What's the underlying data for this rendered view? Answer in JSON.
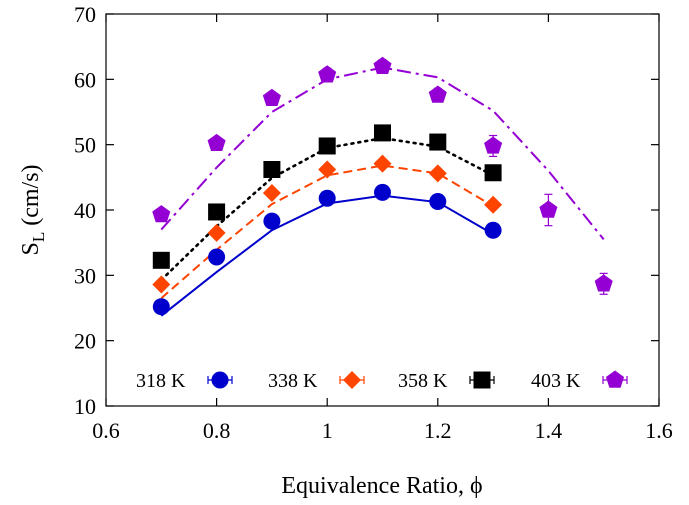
{
  "chart_data": {
    "type": "scatter",
    "xlabel": "Equivalence Ratio, ϕ",
    "ylabel_main": "S",
    "ylabel_sub": "L",
    "ylabel_rest": " (cm/s)",
    "xlim": [
      0.6,
      1.6
    ],
    "ylim": [
      10,
      70
    ],
    "xticks": [
      0.6,
      0.8,
      1,
      1.2,
      1.4,
      1.6
    ],
    "xtick_labels": [
      "0.6",
      "0.8",
      "1",
      "1.2",
      "1.4",
      "1.6"
    ],
    "yticks": [
      10,
      20,
      30,
      40,
      50,
      60,
      70
    ],
    "ytick_labels": [
      "10",
      "20",
      "30",
      "40",
      "50",
      "60",
      "70"
    ],
    "grid": false,
    "legend_position": "bottom, single row",
    "series": [
      {
        "name": "318 K",
        "color": "#0000cc",
        "marker": "circle",
        "line_style": "solid",
        "x": [
          0.7,
          0.8,
          0.9,
          1.0,
          1.1,
          1.2,
          1.3
        ],
        "y": [
          25.2,
          32.8,
          38.3,
          41.8,
          42.7,
          41.3,
          36.9
        ],
        "yerr": [
          0.6,
          0.6,
          0.6,
          0.6,
          0.6,
          0.6,
          0.6
        ],
        "fit_x": [
          0.7,
          0.8,
          0.9,
          1.0,
          1.1,
          1.2,
          1.3
        ],
        "fit_y": [
          23.8,
          30.5,
          36.9,
          41.0,
          42.2,
          41.2,
          36.3
        ]
      },
      {
        "name": "338 K",
        "color": "#ff4400",
        "marker": "diamond",
        "line_style": "dashed",
        "x": [
          0.7,
          0.8,
          0.9,
          1.0,
          1.1,
          1.2,
          1.3
        ],
        "y": [
          28.6,
          36.5,
          42.6,
          46.2,
          47.1,
          45.6,
          40.8
        ],
        "yerr": [
          0.6,
          0.6,
          0.6,
          0.6,
          0.6,
          0.6,
          0.6
        ],
        "fit_x": [
          0.7,
          0.8,
          0.9,
          1.0,
          1.1,
          1.2,
          1.3
        ],
        "fit_y": [
          26.5,
          33.9,
          40.9,
          45.3,
          46.8,
          45.6,
          40.6
        ]
      },
      {
        "name": "358 K",
        "color": "#000000",
        "marker": "square",
        "line_style": "dotted",
        "x": [
          0.7,
          0.8,
          0.9,
          1.0,
          1.1,
          1.2,
          1.3
        ],
        "y": [
          32.3,
          39.7,
          46.2,
          49.8,
          51.8,
          50.4,
          45.7
        ],
        "yerr": [
          0.6,
          0.6,
          0.6,
          0.6,
          0.6,
          0.6,
          0.6
        ],
        "fit_x": [
          0.7,
          0.8,
          0.9,
          1.0,
          1.1,
          1.2,
          1.3
        ],
        "fit_y": [
          29.3,
          37.5,
          44.9,
          49.5,
          51.0,
          49.7,
          45.3
        ]
      },
      {
        "name": "403 K",
        "color": "#9400d3",
        "marker": "pentagon",
        "line_style": "dash-dot",
        "x": [
          0.7,
          0.8,
          0.9,
          1.0,
          1.1,
          1.2,
          1.3,
          1.4,
          1.5
        ],
        "y": [
          39.3,
          50.2,
          57.1,
          60.7,
          62.0,
          57.6,
          49.8,
          40.0,
          28.7
        ],
        "yerr": [
          0.8,
          0.8,
          0.8,
          1.0,
          1.0,
          1.0,
          1.6,
          2.4,
          1.6
        ],
        "fit_x": [
          0.7,
          0.8,
          0.9,
          1.0,
          1.1,
          1.2,
          1.3,
          1.4,
          1.5
        ],
        "fit_y": [
          37.0,
          46.5,
          55.0,
          60.0,
          61.8,
          60.3,
          55.2,
          46.0,
          35.5
        ]
      }
    ]
  }
}
